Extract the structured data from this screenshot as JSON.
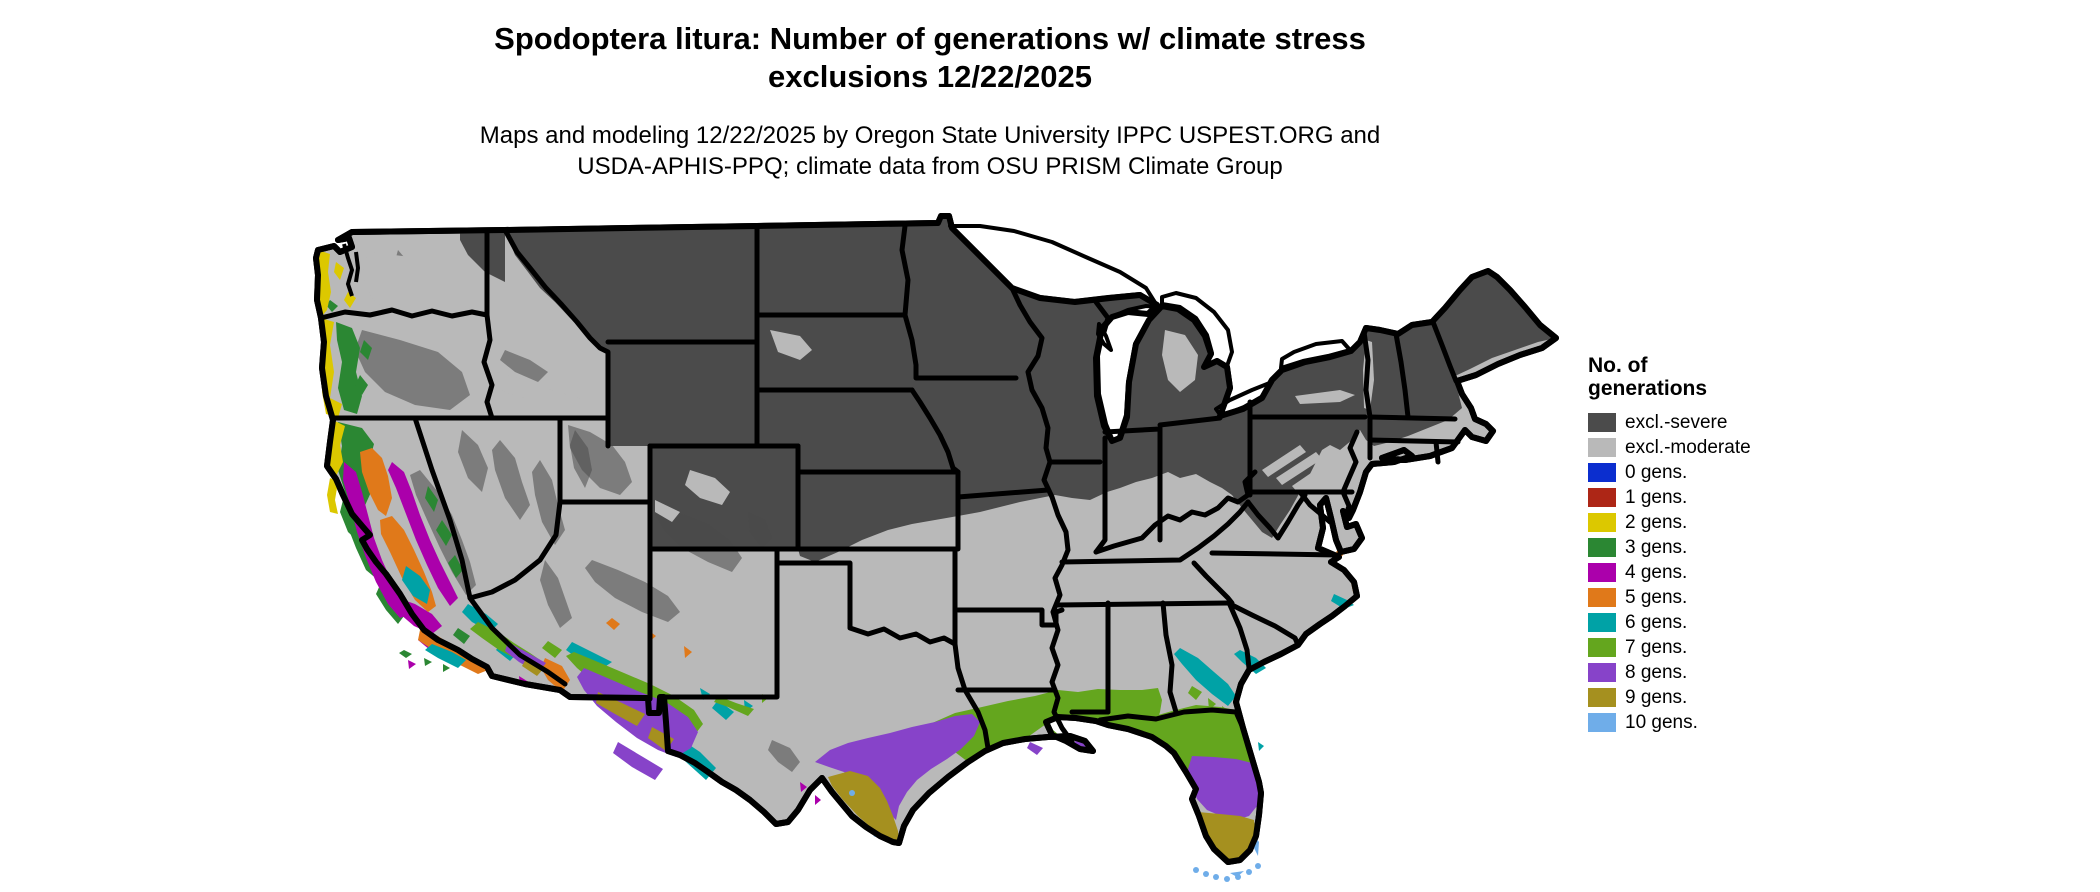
{
  "page": {
    "background": "#ffffff"
  },
  "title": {
    "line1": "Spodoptera litura: Number of generations w/ climate stress",
    "line2": "exclusions 12/22/2025"
  },
  "subtitle": {
    "line1": "Maps and modeling 12/22/2025 by Oregon State University IPPC USPEST.ORG and",
    "line2": "USDA-APHIS-PPQ; climate data from OSU PRISM Climate Group"
  },
  "legend": {
    "title_line1": "No. of",
    "title_line2": "generations",
    "items": [
      {
        "label": "excl.-severe",
        "color": "#4b4b4b"
      },
      {
        "label": "excl.-moderate",
        "color": "#b9b9b9"
      },
      {
        "label": "0 gens.",
        "color": "#0b2ecf"
      },
      {
        "label": "1 gens.",
        "color": "#ad2616"
      },
      {
        "label": "2 gens.",
        "color": "#dcc800"
      },
      {
        "label": "3 gens.",
        "color": "#2b8733"
      },
      {
        "label": "4 gens.",
        "color": "#ab00ab"
      },
      {
        "label": "5 gens.",
        "color": "#e0791a"
      },
      {
        "label": "6 gens.",
        "color": "#00a2a6"
      },
      {
        "label": "7 gens.",
        "color": "#64a61e"
      },
      {
        "label": "8 gens.",
        "color": "#8743c9"
      },
      {
        "label": "9 gens.",
        "color": "#a5901f"
      },
      {
        "label": "10 gens.",
        "color": "#6fade9"
      }
    ]
  },
  "map": {
    "outline_color": "#000000",
    "water_color": "#ffffff",
    "classes": [
      "sev",
      "mod",
      "g0",
      "g1",
      "g2",
      "g3",
      "g4",
      "g5",
      "g6",
      "g7",
      "g8",
      "g9",
      "g10"
    ]
  }
}
